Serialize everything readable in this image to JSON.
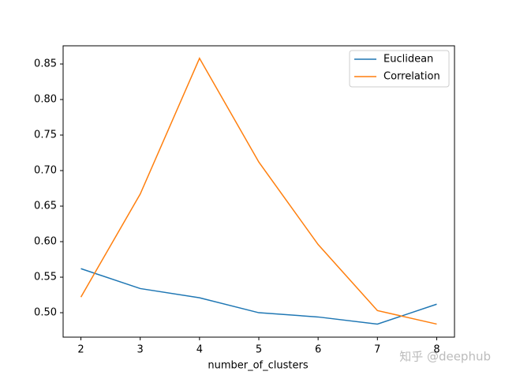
{
  "chart_data": {
    "type": "line",
    "x_label": "number_of_clusters",
    "x": [
      2,
      3,
      4,
      5,
      6,
      7,
      8
    ],
    "series": [
      {
        "name": "Euclidean",
        "color": "#1f77b4",
        "values": [
          0.562,
          0.534,
          0.521,
          0.5,
          0.494,
          0.484,
          0.512
        ]
      },
      {
        "name": "Correlation",
        "color": "#ff7f0e",
        "values": [
          0.522,
          0.667,
          0.858,
          0.712,
          0.596,
          0.503,
          0.484
        ]
      }
    ],
    "xlim": [
      1.7,
      8.3
    ],
    "xticks": [
      2,
      3,
      4,
      5,
      6,
      7,
      8
    ],
    "ylim": [
      0.4656,
      0.8756
    ],
    "yticks": [
      {
        "value": 0.5,
        "label": "0.50"
      },
      0.55,
      {
        "value": 0.6,
        "label": "0.60"
      },
      0.65,
      {
        "value": 0.7,
        "label": "0.70"
      },
      0.75,
      {
        "value": 0.8,
        "label": "0.80"
      },
      0.85
    ],
    "legend": "upper right",
    "watermark": "知乎 @deephub"
  }
}
